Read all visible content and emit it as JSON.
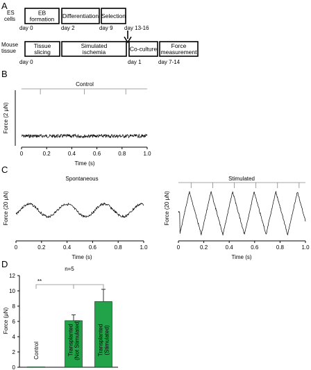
{
  "panels": {
    "a": "A",
    "b": "B",
    "c": "C",
    "d": "D"
  },
  "panel_a": {
    "row1_label": [
      "ES",
      "cells"
    ],
    "row2_label": [
      "Mouse",
      "tissue"
    ],
    "row1_boxes": [
      [
        "EB",
        "formation"
      ],
      [
        "Differentiation"
      ],
      [
        "Selection"
      ]
    ],
    "row1_days": [
      "day 0",
      "day 2",
      "day 9",
      "day 13-16"
    ],
    "row2_boxes": [
      [
        "Tissue",
        "slicing"
      ],
      [
        "Simulated",
        "ischemia"
      ],
      [
        "Co-culture"
      ],
      [
        "Force",
        "measurement"
      ]
    ],
    "row2_days": [
      "day 0",
      "day 1",
      "day 7-14"
    ]
  },
  "panel_b": {
    "title": "Control",
    "ylabel": "Force (2 μN)",
    "xlabel": "Time (s)",
    "xticks": [
      "0",
      "0.2",
      "0.4",
      "0.6",
      "0.8",
      "1.0"
    ],
    "stim_times": [
      0.15,
      0.5,
      0.83
    ]
  },
  "panel_c_left": {
    "title": "Spontaneous",
    "ylabel": "Force (20 μN)",
    "xlabel": "Time (s)",
    "xticks": [
      "0",
      "0.2",
      "0.4",
      "0.6",
      "0.8",
      "1.0"
    ]
  },
  "panel_c_right": {
    "title": "Stimulated",
    "ylabel": "Force (20 μN)",
    "xlabel": "Time (s)",
    "xticks": [
      "0",
      "0.2",
      "0.4",
      "0.6",
      "0.8",
      "1.0"
    ],
    "stim_times": [
      0.1,
      0.27,
      0.44,
      0.61,
      0.78,
      0.95
    ]
  },
  "chart_data": {
    "type": "bar",
    "categories": [
      "Control",
      "Transplanted (Not Stimulated)",
      "Transplanted (Stimulated)"
    ],
    "category_lines": [
      [
        "Control"
      ],
      [
        "Transplanted",
        "(Not Stimulated)"
      ],
      [
        "Transplanted",
        "(Stimulated)"
      ]
    ],
    "values": [
      0.05,
      6.1,
      8.6
    ],
    "errors": [
      0.0,
      0.75,
      1.6
    ],
    "ylabel": "Force (μN)",
    "ylim": [
      0,
      12
    ],
    "yticks": [
      "0",
      "2",
      "4",
      "6",
      "8",
      "10",
      "12"
    ],
    "significance": "**",
    "n_label": "n=5",
    "colors": [
      "#22a34a"
    ]
  }
}
